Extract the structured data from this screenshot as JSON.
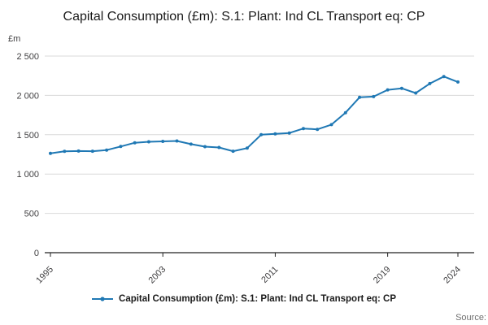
{
  "header": {
    "title": "Capital Consumption (£m): S.1: Plant: Ind CL Transport eq: CP"
  },
  "axes": {
    "y_unit": "£m"
  },
  "chart_data": {
    "type": "line",
    "title": "Capital Consumption (£m): S.1: Plant: Ind CL Transport eq: CP",
    "xlabel": "",
    "ylabel": "£m",
    "x": [
      1995,
      1996,
      1997,
      1998,
      1999,
      2000,
      2001,
      2002,
      2003,
      2004,
      2005,
      2006,
      2007,
      2008,
      2009,
      2010,
      2011,
      2012,
      2013,
      2014,
      2015,
      2016,
      2017,
      2018,
      2019,
      2020,
      2021,
      2022,
      2023,
      2024
    ],
    "series": [
      {
        "name": "Capital Consumption (£m): S.1: Plant: Ind CL Transport eq: CP",
        "color": "#1f78b4",
        "values": [
          1262,
          1288,
          1292,
          1290,
          1305,
          1350,
          1398,
          1410,
          1415,
          1420,
          1380,
          1348,
          1338,
          1290,
          1330,
          1500,
          1510,
          1522,
          1578,
          1568,
          1628,
          1780,
          1975,
          1985,
          2070,
          2090,
          2030,
          2150,
          2240,
          2170
        ]
      }
    ],
    "ylim": [
      0,
      2500
    ],
    "yticks": [
      0,
      500,
      1000,
      1500,
      2000,
      2500
    ],
    "ytick_labels": [
      "0",
      "500",
      "1 000",
      "1 500",
      "2 000",
      "2 500"
    ],
    "xticks": [
      1995,
      2003,
      2011,
      2019,
      2024
    ],
    "grid": true,
    "legend_position": "bottom"
  },
  "legend": {
    "label": "Capital Consumption (£m): S.1: Plant: Ind CL Transport eq: CP"
  },
  "source": {
    "label": "Source:"
  }
}
